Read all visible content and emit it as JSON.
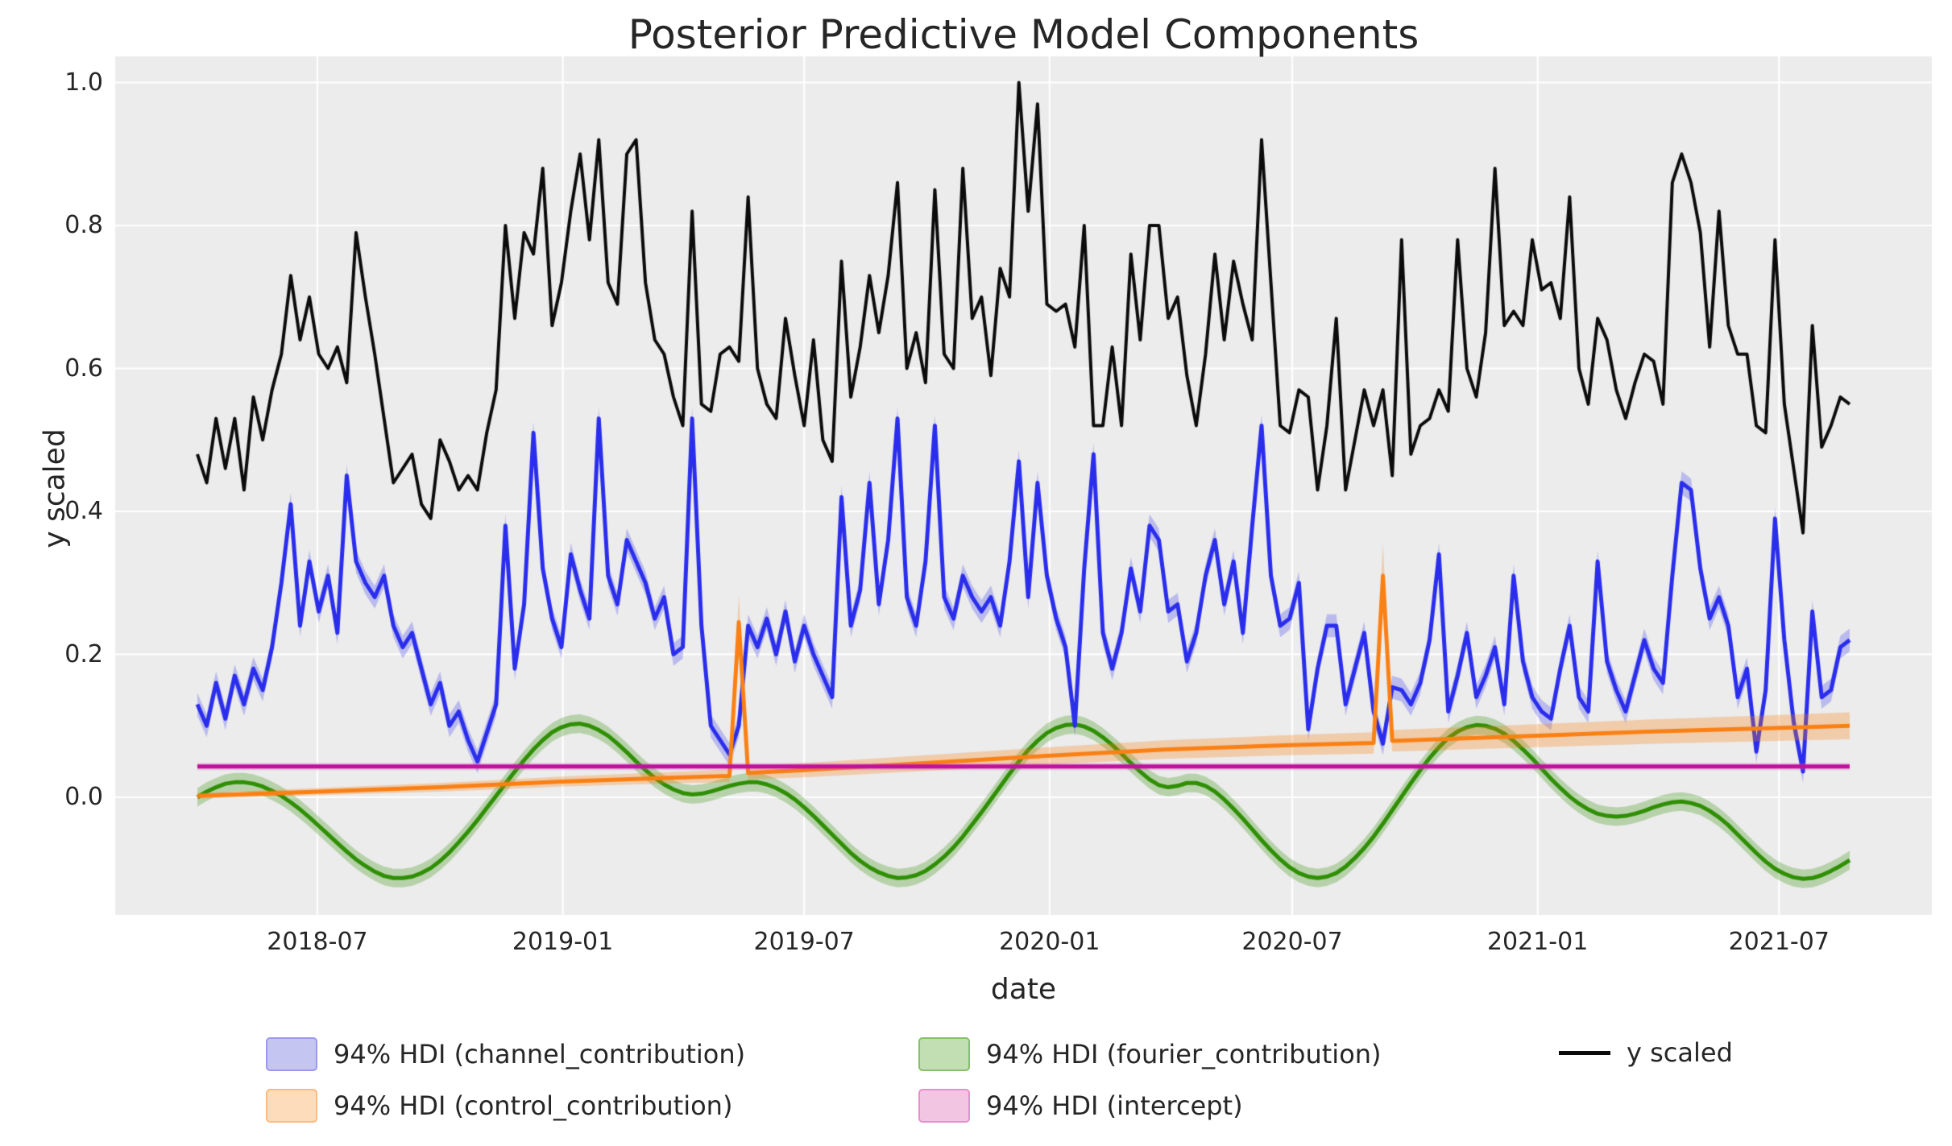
{
  "title": "Posterior Predictive Model Components",
  "chart_data": {
    "type": "line",
    "title": "Posterior Predictive Model Components",
    "xlabel": "date",
    "ylabel": "y scaled",
    "plot_bg": "#ececec",
    "grid_color": "#ffffff",
    "grid": true,
    "ylim_ticks": [
      0.0,
      0.2,
      0.4,
      0.6,
      0.8,
      1.0
    ],
    "x_tick_labels": [
      "2018-07",
      "2019-01",
      "2019-07",
      "2020-01",
      "2020-07",
      "2021-01",
      "2021-07"
    ],
    "x_start_date": "2018-04-02",
    "x_step_days": 7,
    "n_points": 178,
    "series": [
      {
        "name": "94% HDI (fourier_contribution)",
        "kind": "band_line",
        "line_color": "#2f8f04",
        "band_color": "rgba(60,150,20,0.30)",
        "line_width": 5,
        "band_halfwidth": 0.013,
        "values": [
          0.0,
          0.008,
          0.014,
          0.019,
          0.021,
          0.021,
          0.019,
          0.015,
          0.009,
          0.002,
          -0.007,
          -0.017,
          -0.028,
          -0.04,
          -0.052,
          -0.064,
          -0.076,
          -0.087,
          -0.096,
          -0.104,
          -0.11,
          -0.113,
          -0.113,
          -0.111,
          -0.106,
          -0.099,
          -0.089,
          -0.077,
          -0.063,
          -0.048,
          -0.032,
          -0.015,
          0.002,
          0.019,
          0.036,
          0.052,
          0.067,
          0.08,
          0.091,
          0.098,
          0.102,
          0.103,
          0.1,
          0.094,
          0.086,
          0.075,
          0.063,
          0.05,
          0.038,
          0.027,
          0.018,
          0.011,
          0.006,
          0.004,
          0.005,
          0.008,
          0.012,
          0.016,
          0.019,
          0.021,
          0.021,
          0.018,
          0.013,
          0.006,
          -0.003,
          -0.014,
          -0.026,
          -0.039,
          -0.052,
          -0.065,
          -0.078,
          -0.089,
          -0.098,
          -0.105,
          -0.11,
          -0.113,
          -0.112,
          -0.109,
          -0.103,
          -0.094,
          -0.083,
          -0.07,
          -0.055,
          -0.038,
          -0.021,
          -0.003,
          0.015,
          0.033,
          0.05,
          0.066,
          0.079,
          0.09,
          0.097,
          0.101,
          0.102,
          0.099,
          0.093,
          0.084,
          0.073,
          0.061,
          0.048,
          0.036,
          0.025,
          0.017,
          0.014,
          0.016,
          0.02,
          0.02,
          0.016,
          0.008,
          -0.003,
          -0.016,
          -0.03,
          -0.045,
          -0.06,
          -0.074,
          -0.087,
          -0.098,
          -0.106,
          -0.111,
          -0.113,
          -0.111,
          -0.106,
          -0.097,
          -0.085,
          -0.071,
          -0.055,
          -0.037,
          -0.018,
          0.001,
          0.02,
          0.038,
          0.055,
          0.07,
          0.083,
          0.092,
          0.098,
          0.101,
          0.1,
          0.096,
          0.089,
          0.079,
          0.067,
          0.054,
          0.04,
          0.026,
          0.013,
          0.001,
          -0.009,
          -0.017,
          -0.023,
          -0.026,
          -0.027,
          -0.026,
          -0.023,
          -0.019,
          -0.014,
          -0.01,
          -0.007,
          -0.006,
          -0.008,
          -0.012,
          -0.019,
          -0.028,
          -0.039,
          -0.052,
          -0.065,
          -0.078,
          -0.09,
          -0.1,
          -0.107,
          -0.112,
          -0.114,
          -0.113,
          -0.109,
          -0.103,
          -0.096,
          -0.088
        ]
      },
      {
        "name": "94% HDI (channel_contribution)",
        "kind": "band_line",
        "line_color": "#2a2eec",
        "band_color": "rgba(42,46,236,0.26)",
        "line_width": 5,
        "band_halfwidth": 0.016,
        "values": [
          0.13,
          0.1,
          0.16,
          0.11,
          0.17,
          0.13,
          0.18,
          0.15,
          0.21,
          0.3,
          0.41,
          0.24,
          0.33,
          0.26,
          0.31,
          0.23,
          0.45,
          0.33,
          0.3,
          0.28,
          0.31,
          0.24,
          0.21,
          0.23,
          0.18,
          0.13,
          0.16,
          0.1,
          0.12,
          0.08,
          0.05,
          0.09,
          0.13,
          0.38,
          0.18,
          0.27,
          0.51,
          0.32,
          0.25,
          0.21,
          0.34,
          0.29,
          0.25,
          0.53,
          0.31,
          0.27,
          0.36,
          0.33,
          0.3,
          0.25,
          0.28,
          0.2,
          0.21,
          0.53,
          0.24,
          0.1,
          0.08,
          0.06,
          0.1,
          0.24,
          0.21,
          0.25,
          0.2,
          0.26,
          0.19,
          0.24,
          0.2,
          0.17,
          0.14,
          0.42,
          0.24,
          0.29,
          0.44,
          0.27,
          0.36,
          0.53,
          0.28,
          0.24,
          0.33,
          0.52,
          0.28,
          0.25,
          0.31,
          0.28,
          0.26,
          0.28,
          0.24,
          0.33,
          0.47,
          0.28,
          0.44,
          0.31,
          0.25,
          0.21,
          0.1,
          0.32,
          0.48,
          0.23,
          0.18,
          0.23,
          0.32,
          0.26,
          0.38,
          0.36,
          0.26,
          0.27,
          0.19,
          0.23,
          0.31,
          0.36,
          0.27,
          0.33,
          0.23,
          0.38,
          0.52,
          0.31,
          0.24,
          0.25,
          0.3,
          0.095,
          0.18,
          0.24,
          0.24,
          0.13,
          0.18,
          0.23,
          0.12,
          0.075,
          0.154,
          0.15,
          0.13,
          0.16,
          0.22,
          0.34,
          0.12,
          0.17,
          0.23,
          0.14,
          0.17,
          0.21,
          0.13,
          0.31,
          0.19,
          0.14,
          0.12,
          0.11,
          0.18,
          0.24,
          0.14,
          0.12,
          0.33,
          0.19,
          0.15,
          0.12,
          0.17,
          0.22,
          0.18,
          0.16,
          0.31,
          0.44,
          0.43,
          0.32,
          0.25,
          0.28,
          0.24,
          0.14,
          0.18,
          0.064,
          0.15,
          0.39,
          0.22,
          0.105,
          0.036,
          0.26,
          0.14,
          0.15,
          0.21,
          0.22
        ]
      },
      {
        "name": "94% HDI (control_contribution)",
        "kind": "band_line",
        "line_color": "#fa8014",
        "band_color": "rgba(250,128,20,0.30)",
        "line_width": 5,
        "x_weeks": [
          0,
          13,
          26,
          39,
          52,
          57,
          58,
          59,
          65,
          78,
          91,
          104,
          117,
          126,
          127,
          128,
          143,
          156,
          169,
          177
        ],
        "band_halfwidth_array": [
          0.004,
          0.005,
          0.006,
          0.007,
          0.008,
          0.009,
          0.038,
          0.009,
          0.01,
          0.011,
          0.012,
          0.013,
          0.014,
          0.015,
          0.045,
          0.015,
          0.016,
          0.017,
          0.018,
          0.019
        ],
        "values": [
          0.002,
          0.008,
          0.014,
          0.022,
          0.028,
          0.03,
          0.245,
          0.034,
          0.038,
          0.048,
          0.058,
          0.067,
          0.073,
          0.076,
          0.31,
          0.079,
          0.086,
          0.092,
          0.097,
          0.1
        ]
      },
      {
        "name": "94% HDI (intercept)",
        "kind": "hline",
        "line_color": "#c0119d",
        "band_color": "rgba(222,80,190,0.30)",
        "line_width": 5,
        "band_halfwidth": 0.005,
        "value": 0.043
      },
      {
        "name": "y scaled",
        "kind": "line",
        "line_color": "#0b0b0b",
        "line_width": 4,
        "values": [
          0.48,
          0.44,
          0.53,
          0.46,
          0.53,
          0.43,
          0.56,
          0.5,
          0.57,
          0.62,
          0.73,
          0.64,
          0.7,
          0.62,
          0.6,
          0.63,
          0.58,
          0.79,
          0.7,
          0.62,
          0.53,
          0.44,
          0.46,
          0.48,
          0.41,
          0.39,
          0.5,
          0.47,
          0.43,
          0.45,
          0.43,
          0.51,
          0.57,
          0.8,
          0.67,
          0.79,
          0.76,
          0.88,
          0.66,
          0.72,
          0.82,
          0.9,
          0.78,
          0.92,
          0.72,
          0.69,
          0.9,
          0.92,
          0.72,
          0.64,
          0.62,
          0.56,
          0.52,
          0.82,
          0.55,
          0.54,
          0.62,
          0.63,
          0.61,
          0.84,
          0.6,
          0.55,
          0.53,
          0.67,
          0.59,
          0.52,
          0.64,
          0.5,
          0.47,
          0.75,
          0.56,
          0.63,
          0.73,
          0.65,
          0.73,
          0.86,
          0.6,
          0.65,
          0.58,
          0.85,
          0.62,
          0.6,
          0.88,
          0.67,
          0.7,
          0.59,
          0.74,
          0.7,
          1.0,
          0.82,
          0.97,
          0.69,
          0.68,
          0.69,
          0.63,
          0.8,
          0.52,
          0.52,
          0.63,
          0.52,
          0.76,
          0.64,
          0.8,
          0.8,
          0.67,
          0.7,
          0.59,
          0.52,
          0.62,
          0.76,
          0.64,
          0.75,
          0.69,
          0.64,
          0.92,
          0.72,
          0.52,
          0.51,
          0.57,
          0.56,
          0.43,
          0.52,
          0.67,
          0.43,
          0.5,
          0.57,
          0.52,
          0.57,
          0.45,
          0.78,
          0.48,
          0.52,
          0.53,
          0.57,
          0.54,
          0.78,
          0.6,
          0.56,
          0.65,
          0.88,
          0.66,
          0.68,
          0.66,
          0.78,
          0.71,
          0.72,
          0.67,
          0.84,
          0.6,
          0.55,
          0.67,
          0.64,
          0.57,
          0.53,
          0.58,
          0.62,
          0.61,
          0.55,
          0.86,
          0.9,
          0.86,
          0.79,
          0.63,
          0.82,
          0.66,
          0.62,
          0.62,
          0.52,
          0.51,
          0.78,
          0.55,
          0.46,
          0.37,
          0.66,
          0.49,
          0.52,
          0.56,
          0.55
        ]
      }
    ]
  },
  "legend": {
    "items": [
      {
        "label": "94% HDI (channel_contribution)",
        "swatch": "patch",
        "fill": "#c5c5f1",
        "border": "#9b99ee"
      },
      {
        "label": "94% HDI (control_contribution)",
        "swatch": "patch",
        "fill": "#fcdcba",
        "border": "#fbbb80"
      },
      {
        "label": "94% HDI (fourier_contribution)",
        "swatch": "patch",
        "fill": "#c2deb3",
        "border": "#87bf6a"
      },
      {
        "label": "94% HDI (intercept)",
        "swatch": "patch",
        "fill": "#f2c6e2",
        "border": "#e88fcb"
      },
      {
        "label": "y scaled",
        "swatch": "line",
        "color": "#0b0b0b"
      }
    ]
  }
}
